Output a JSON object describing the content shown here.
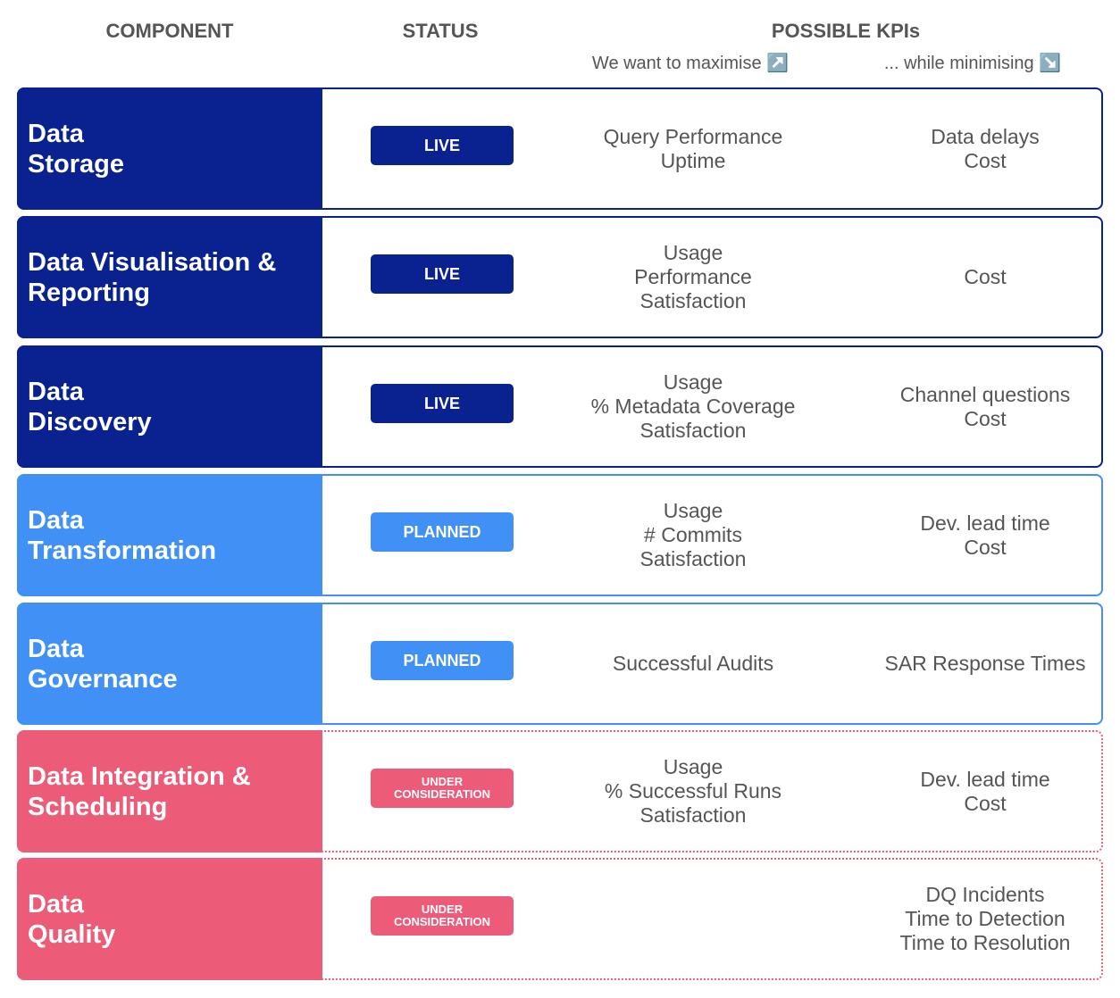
{
  "header": {
    "component": "COMPONENT",
    "status": "STATUS",
    "kpis": "POSSIBLE KPIs",
    "maximise": "We want to maximise ↗️",
    "minimise": "... while minimising ↘️"
  },
  "rows": [
    {
      "component": [
        "Data",
        "Storage"
      ],
      "status": [
        "LIVE"
      ],
      "maximise": [
        "Query Performance",
        "Uptime"
      ],
      "minimise": [
        "Data delays",
        "Cost"
      ]
    },
    {
      "component": [
        "Data Visualisation &",
        "Reporting"
      ],
      "status": [
        "LIVE"
      ],
      "maximise": [
        "Usage",
        "Performance",
        "Satisfaction"
      ],
      "minimise": [
        "Cost"
      ]
    },
    {
      "component": [
        "Data",
        "Discovery"
      ],
      "status": [
        "LIVE"
      ],
      "maximise": [
        "Usage",
        "% Metadata Coverage",
        "Satisfaction"
      ],
      "minimise": [
        "Channel questions",
        "Cost"
      ]
    },
    {
      "component": [
        "Data",
        "Transformation"
      ],
      "status": [
        "PLANNED"
      ],
      "maximise": [
        "Usage",
        "# Commits",
        "Satisfaction"
      ],
      "minimise": [
        "Dev. lead time",
        "Cost"
      ]
    },
    {
      "component": [
        "Data",
        "Governance"
      ],
      "status": [
        "PLANNED"
      ],
      "maximise": [
        "Successful Audits"
      ],
      "minimise": [
        "SAR Response Times"
      ]
    },
    {
      "component": [
        "Data Integration &",
        "Scheduling"
      ],
      "status": [
        "UNDER",
        "CONSIDERATION"
      ],
      "maximise": [
        "Usage",
        "% Successful Runs",
        "Satisfaction"
      ],
      "minimise": [
        "Dev. lead time",
        "Cost"
      ]
    },
    {
      "component": [
        "Data",
        "Quality"
      ],
      "status": [
        "UNDER",
        "CONSIDERATION"
      ],
      "maximise": [],
      "minimise": [
        "DQ Incidents",
        "Time to Detection",
        "Time to Resolution"
      ]
    }
  ]
}
